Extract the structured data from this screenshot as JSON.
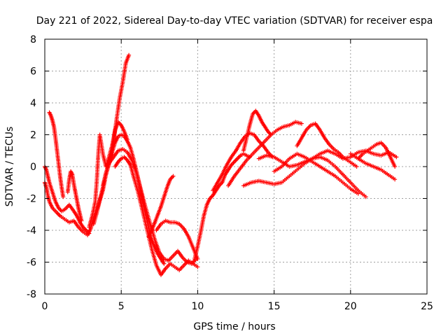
{
  "chart_data": {
    "type": "scatter",
    "title": "Day 221 of 2022, Sidereal Day-to-day VTEC variation (SDTVAR) for receiver espa",
    "xlabel": "GPS time / hours",
    "ylabel": "SDTVAR / TECUs",
    "xlim": [
      0,
      25
    ],
    "ylim": [
      -8,
      8
    ],
    "xticks": [
      0,
      5,
      10,
      15,
      20,
      25
    ],
    "yticks": [
      -8,
      -6,
      -4,
      -2,
      0,
      2,
      4,
      6,
      8
    ],
    "grid": true,
    "legend": "none",
    "marker": "plus",
    "color": "#ff0000",
    "series": [
      {
        "x": [
          0.0,
          0.1,
          0.2,
          0.3,
          0.5,
          0.8,
          1.0,
          1.3,
          1.6,
          1.9,
          2.2,
          2.5,
          2.8,
          3.0,
          3.2,
          3.5,
          3.8,
          4.0,
          4.3,
          4.5,
          4.7,
          4.9,
          5.1,
          5.3,
          5.5
        ],
        "y": [
          -1.0,
          -1.3,
          -1.8,
          -2.2,
          -2.6,
          -2.9,
          -3.1,
          -3.3,
          -3.5,
          -3.4,
          -3.8,
          -4.1,
          -4.3,
          -3.9,
          -3.2,
          -2.4,
          -1.5,
          -0.5,
          0.5,
          1.6,
          3.0,
          4.3,
          5.3,
          6.5,
          7.0
        ]
      },
      {
        "x": [
          0.3,
          0.4,
          0.5,
          0.6,
          0.7,
          0.8,
          0.9,
          1.0,
          1.1,
          1.2
        ],
        "y": [
          3.4,
          3.2,
          2.9,
          2.5,
          1.8,
          1.0,
          0.2,
          -0.6,
          -1.3,
          -1.9
        ]
      },
      {
        "x": [
          0.0,
          0.1,
          0.2,
          0.3,
          0.5,
          0.7,
          0.9,
          1.1,
          1.3,
          1.6,
          1.9,
          2.1,
          2.3,
          2.5,
          2.7,
          2.9
        ],
        "y": [
          0.0,
          -0.2,
          -0.6,
          -1.0,
          -1.6,
          -2.2,
          -2.6,
          -2.8,
          -2.7,
          -2.4,
          -2.8,
          -3.1,
          -3.5,
          -3.8,
          -4.0,
          -4.2
        ]
      },
      {
        "x": [
          1.5,
          1.6,
          1.7,
          1.8,
          1.9,
          2.0,
          2.1,
          2.2,
          2.3,
          2.4
        ],
        "y": [
          -1.6,
          -0.8,
          -0.3,
          -0.5,
          -1.1,
          -1.6,
          -2.1,
          -2.6,
          -3.0,
          -3.4
        ]
      },
      {
        "x": [
          2.9,
          3.1,
          3.3,
          3.4,
          3.5,
          3.6,
          3.8,
          4.0,
          4.2,
          4.4,
          4.6,
          4.8,
          5.0,
          5.2,
          5.4
        ],
        "y": [
          -3.8,
          -3.1,
          -2.2,
          -0.9,
          0.8,
          2.0,
          0.8,
          0.0,
          0.6,
          1.3,
          2.3,
          2.8,
          2.6,
          2.2,
          1.7
        ]
      },
      {
        "x": [
          3.2,
          3.4,
          3.6,
          3.8,
          4.0,
          4.2,
          4.4,
          4.6,
          4.8,
          5.0,
          5.2,
          5.4,
          5.6,
          5.8,
          6.0,
          6.2,
          6.4,
          6.6,
          6.8,
          7.0,
          7.2,
          7.4,
          7.6,
          7.8
        ],
        "y": [
          -3.6,
          -2.9,
          -2.1,
          -1.3,
          -0.5,
          0.3,
          0.9,
          1.5,
          1.9,
          2.0,
          1.9,
          1.6,
          1.2,
          0.5,
          -0.3,
          -1.2,
          -2.1,
          -3.0,
          -3.9,
          -4.6,
          -5.1,
          -5.5,
          -5.8,
          -6.1
        ]
      },
      {
        "x": [
          3.8,
          4.0,
          4.2,
          4.5,
          4.8,
          5.1,
          5.4,
          5.7,
          6.0,
          6.3,
          6.6,
          6.9,
          7.2,
          7.5,
          7.8,
          8.1,
          8.4,
          8.7,
          9.0,
          9.3,
          9.6,
          9.9
        ],
        "y": [
          -1.2,
          -0.4,
          0.2,
          0.6,
          1.0,
          1.1,
          0.9,
          0.4,
          -0.4,
          -1.5,
          -2.6,
          -3.6,
          -4.6,
          -5.4,
          -5.8,
          -5.9,
          -5.6,
          -5.3,
          -5.7,
          -6.0,
          -6.1,
          -5.8
        ]
      },
      {
        "x": [
          4.6,
          4.8,
          5.0,
          5.2,
          5.4,
          5.6,
          5.8,
          6.1,
          6.4,
          6.7,
          7.0,
          7.3,
          7.6,
          7.9,
          8.2,
          8.5,
          8.8,
          9.1,
          9.4,
          9.7,
          10.0
        ],
        "y": [
          0.0,
          0.3,
          0.5,
          0.6,
          0.4,
          0.1,
          -0.6,
          -1.6,
          -2.8,
          -4.0,
          -5.2,
          -6.2,
          -6.8,
          -6.4,
          -6.1,
          -6.3,
          -6.5,
          -6.2,
          -5.9,
          -6.1,
          -6.3
        ]
      },
      {
        "x": [
          7.3,
          7.6,
          7.9,
          8.2,
          8.5,
          8.8,
          9.1,
          9.4,
          9.7,
          10.0
        ],
        "y": [
          -4.0,
          -3.6,
          -3.4,
          -3.5,
          -3.5,
          -3.6,
          -3.9,
          -4.4,
          -5.1,
          -5.8
        ]
      },
      {
        "x": [
          6.8,
          7.0,
          7.2,
          7.4,
          7.6,
          7.8,
          8.0,
          8.2,
          8.4
        ],
        "y": [
          -4.4,
          -4.0,
          -3.5,
          -3.0,
          -2.5,
          -1.9,
          -1.3,
          -0.8,
          -0.6
        ]
      },
      {
        "x": [
          9.8,
          10.0,
          10.2,
          10.4,
          10.6,
          10.8,
          11.0,
          11.2,
          11.4,
          11.6,
          11.8,
          12.0,
          12.2,
          12.4,
          12.6,
          12.8,
          13.0,
          13.2,
          13.4
        ],
        "y": [
          -5.8,
          -5.0,
          -4.1,
          -3.1,
          -2.4,
          -2.0,
          -1.8,
          -1.5,
          -1.2,
          -1.0,
          -0.5,
          -0.2,
          0.1,
          0.3,
          0.5,
          0.7,
          0.8,
          0.7,
          0.6
        ]
      },
      {
        "x": [
          11.0,
          11.3,
          11.6,
          11.9,
          12.2,
          12.5,
          12.8,
          13.1,
          13.4,
          13.7,
          14.0,
          14.3,
          14.6,
          14.9
        ],
        "y": [
          -1.5,
          -1.0,
          -0.5,
          0.1,
          0.6,
          1.0,
          1.5,
          1.9,
          2.1,
          2.0,
          1.6,
          1.3,
          0.9,
          0.6
        ]
      },
      {
        "x": [
          12.0,
          12.4,
          12.8,
          13.2,
          13.6,
          14.0,
          14.4,
          14.8,
          15.2,
          15.6,
          16.0,
          16.4,
          16.8
        ],
        "y": [
          -1.2,
          -0.6,
          -0.1,
          0.4,
          0.8,
          1.2,
          1.6,
          2.0,
          2.3,
          2.5,
          2.6,
          2.8,
          2.7
        ]
      },
      {
        "x": [
          13.0,
          13.2,
          13.4,
          13.6,
          13.8,
          14.0,
          14.2,
          14.4,
          14.6,
          14.8
        ],
        "y": [
          1.0,
          1.8,
          2.6,
          3.3,
          3.5,
          3.2,
          2.8,
          2.5,
          2.2,
          2.0
        ]
      },
      {
        "x": [
          13.0,
          13.5,
          14.0,
          14.5,
          15.0,
          15.5,
          16.0,
          16.5,
          17.0,
          17.5,
          18.0,
          18.5,
          19.0,
          19.5,
          20.0,
          20.5,
          21.0
        ],
        "y": [
          -1.2,
          -1.0,
          -0.9,
          -1.0,
          -1.1,
          -1.0,
          -0.6,
          -0.2,
          0.2,
          0.5,
          0.6,
          0.4,
          0.0,
          -0.5,
          -1.0,
          -1.5,
          -1.9
        ]
      },
      {
        "x": [
          15.0,
          15.5,
          16.0,
          16.5,
          17.0,
          17.5,
          18.0,
          18.5,
          19.0,
          19.5,
          20.0,
          20.5
        ],
        "y": [
          -0.3,
          0.0,
          0.5,
          0.8,
          0.6,
          0.3,
          0.0,
          -0.3,
          -0.6,
          -1.0,
          -1.4,
          -1.7
        ]
      },
      {
        "x": [
          14.0,
          14.5,
          15.0,
          15.5,
          16.0,
          16.5,
          17.0,
          17.5,
          18.0,
          18.5,
          19.0,
          19.5,
          20.0,
          20.5,
          21.0,
          21.5,
          22.0,
          22.5,
          23.0
        ],
        "y": [
          0.5,
          0.7,
          0.6,
          0.3,
          0.0,
          0.1,
          0.3,
          0.5,
          0.8,
          1.0,
          0.8,
          0.5,
          0.6,
          0.9,
          1.0,
          0.8,
          0.7,
          0.9,
          0.6
        ]
      },
      {
        "x": [
          16.5,
          16.8,
          17.1,
          17.4,
          17.7,
          18.0,
          18.3,
          18.6,
          18.9,
          19.2,
          19.5,
          19.8,
          20.1,
          20.4
        ],
        "y": [
          1.3,
          1.8,
          2.3,
          2.6,
          2.7,
          2.3,
          1.8,
          1.4,
          1.1,
          0.9,
          0.6,
          0.4,
          0.2,
          0.0
        ]
      },
      {
        "x": [
          20.5,
          20.8,
          21.1,
          21.4,
          21.7,
          22.0,
          22.3,
          22.6,
          22.9
        ],
        "y": [
          0.5,
          0.8,
          1.0,
          1.2,
          1.4,
          1.5,
          1.2,
          0.6,
          0.0
        ]
      },
      {
        "x": [
          20.0,
          20.5,
          21.0,
          21.5,
          22.0,
          22.3,
          22.6,
          22.9
        ],
        "y": [
          0.8,
          0.5,
          0.2,
          0.0,
          -0.2,
          -0.4,
          -0.6,
          -0.8
        ]
      }
    ]
  }
}
